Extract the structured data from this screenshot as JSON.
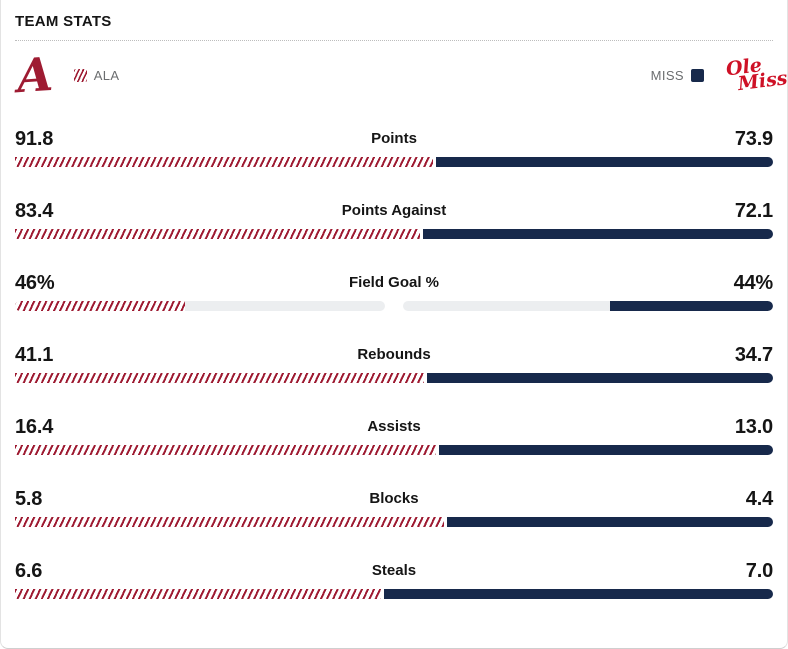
{
  "header": {
    "title": "TEAM STATS"
  },
  "teams": {
    "home": {
      "abbrev": "ALA",
      "logo_letter": "A",
      "color": "#9e1b32",
      "swatch_style": "crimson-diagonal-hatch"
    },
    "away": {
      "abbrev": "MISS",
      "logo_line1": "Ole",
      "logo_line2": "Miss",
      "color": "#17294b",
      "swatch_style": "solid-navy"
    }
  },
  "colors": {
    "home": "#9e1b32",
    "away": "#17294b",
    "track": "#eceef0",
    "olemiss_logo_red": "#ce1126",
    "text": "#151515",
    "muted_label": "#6b6d6f"
  },
  "stats": [
    {
      "label": "Points",
      "home": "91.8",
      "away": "73.9",
      "home_num": 91.8,
      "away_num": 73.9,
      "percent": false
    },
    {
      "label": "Points Against",
      "home": "83.4",
      "away": "72.1",
      "home_num": 83.4,
      "away_num": 72.1,
      "percent": false
    },
    {
      "label": "Field Goal %",
      "home": "46%",
      "away": "44%",
      "home_num": 46,
      "away_num": 44,
      "percent": true
    },
    {
      "label": "Rebounds",
      "home": "41.1",
      "away": "34.7",
      "home_num": 41.1,
      "away_num": 34.7,
      "percent": false
    },
    {
      "label": "Assists",
      "home": "16.4",
      "away": "13.0",
      "home_num": 16.4,
      "away_num": 13.0,
      "percent": false
    },
    {
      "label": "Blocks",
      "home": "5.8",
      "away": "4.4",
      "home_num": 5.8,
      "away_num": 4.4,
      "percent": false
    },
    {
      "label": "Steals",
      "home": "6.6",
      "away": "7.0",
      "home_num": 6.6,
      "away_num": 7.0,
      "percent": false
    }
  ],
  "chart_data": {
    "type": "bar",
    "title": "TEAM STATS",
    "categories": [
      "Points",
      "Points Against",
      "Field Goal %",
      "Rebounds",
      "Assists",
      "Blocks",
      "Steals"
    ],
    "series": [
      {
        "name": "ALA",
        "values": [
          91.8,
          83.4,
          46,
          41.1,
          16.4,
          5.8,
          6.6
        ]
      },
      {
        "name": "MISS",
        "values": [
          73.9,
          72.1,
          44,
          34.7,
          13.0,
          4.4,
          7.0
        ]
      }
    ],
    "value_format": {
      "Field Goal %": "percent",
      "others": "decimal-1"
    },
    "layout": "paired horizontal comparison bars; non-percent rows split one bar proportionally between teams; percent rows show partial fill on gray half-width tracks",
    "legend_position": "top (team logos row)",
    "grid": false
  }
}
